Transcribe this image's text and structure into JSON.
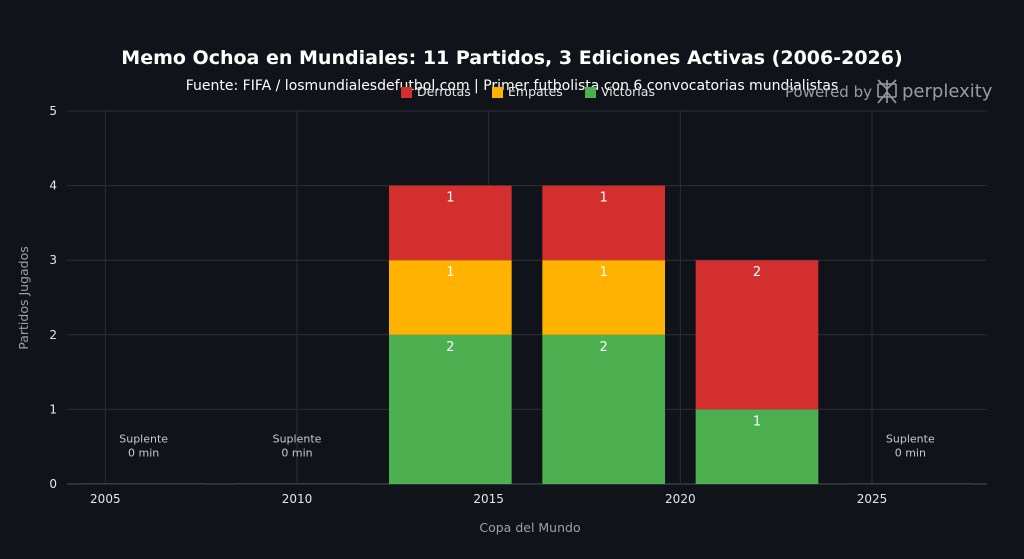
{
  "watermark": {
    "prefix": "Powered by",
    "brand": "perplexity"
  },
  "chart_data": {
    "type": "bar",
    "stacked": true,
    "title": "Memo Ochoa en Mundiales: 11 Partidos, 3 Ediciones Activas (2006-2026)",
    "subtitle": "Fuente: FIFA / losmundialesdefutbol.com | Primer futbolista con 6 convocatorias mundialistas",
    "xlabel": "Copa del Mundo",
    "ylabel": "Partidos Jugados",
    "xlim": [
      2004,
      2028
    ],
    "ylim": [
      0,
      5
    ],
    "xticks": [
      2005,
      2010,
      2015,
      2020,
      2025
    ],
    "yticks": [
      0,
      1,
      2,
      3,
      4,
      5
    ],
    "grid": true,
    "legend_position": "top",
    "x": [
      2006,
      2010,
      2014,
      2018,
      2022,
      2026
    ],
    "series": [
      {
        "name": "Victorias",
        "color": "#4caf50",
        "values": [
          0,
          0,
          2,
          2,
          1,
          0
        ]
      },
      {
        "name": "Empates",
        "color": "#ffb300",
        "values": [
          0,
          0,
          1,
          1,
          0,
          0
        ]
      },
      {
        "name": "Derrotas",
        "color": "#d32f2f",
        "values": [
          0,
          0,
          1,
          1,
          2,
          0
        ]
      }
    ],
    "legend_order": [
      "Derrotas",
      "Empates",
      "Victorias"
    ],
    "annotations": [
      {
        "x": 2006,
        "y": 0.5,
        "lines": [
          "Suplente",
          "0 min"
        ]
      },
      {
        "x": 2010,
        "y": 0.5,
        "lines": [
          "Suplente",
          "0 min"
        ]
      },
      {
        "x": 2026,
        "y": 0.5,
        "lines": [
          "Suplente",
          "0 min"
        ]
      }
    ]
  }
}
